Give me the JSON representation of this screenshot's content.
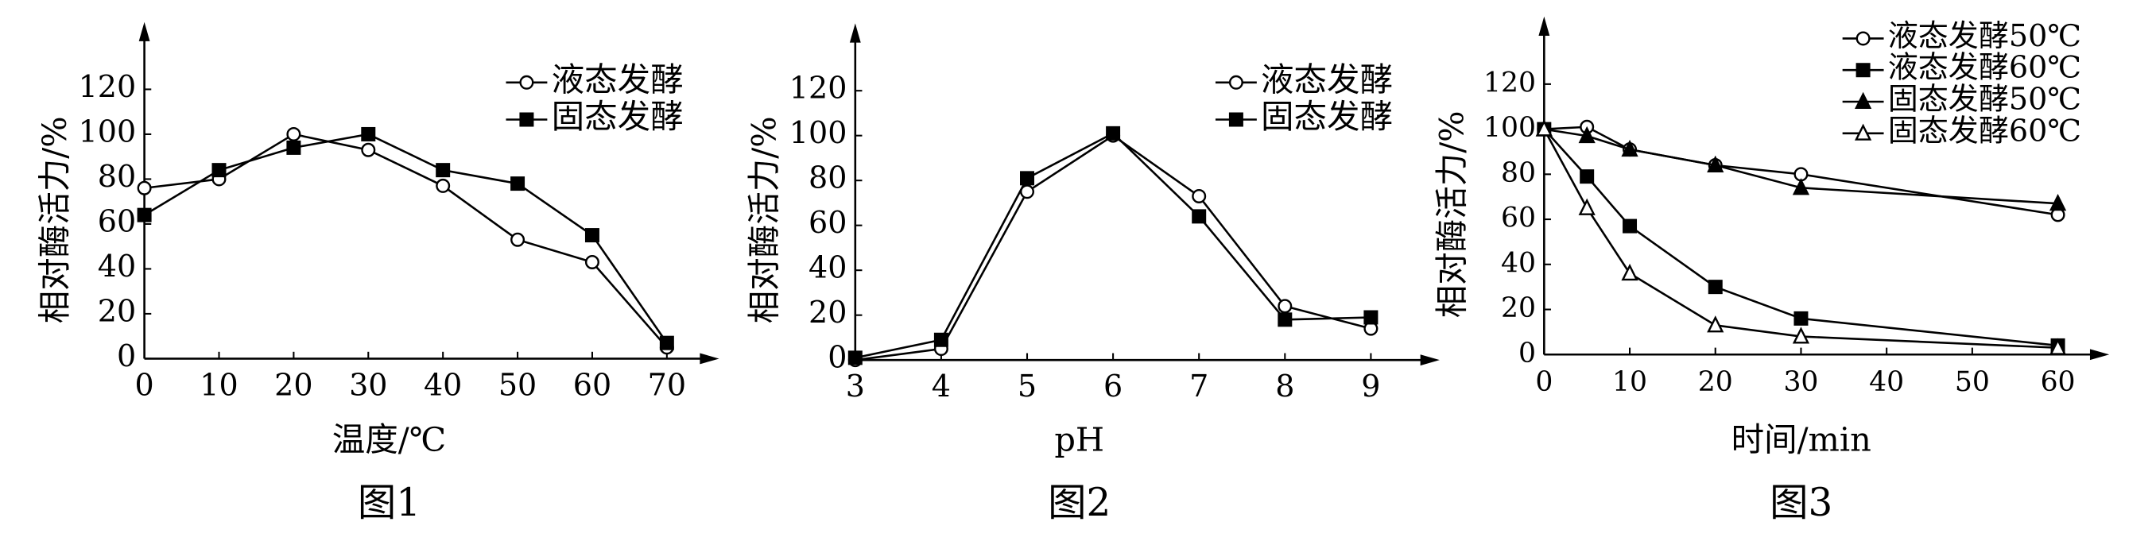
{
  "chart_data": [
    {
      "type": "line",
      "caption": "图1",
      "xlabel": "温度/℃",
      "ylabel": "相对酶活力/%",
      "x": [
        0,
        10,
        20,
        30,
        40,
        50,
        60,
        70
      ],
      "xlim": [
        0,
        77
      ],
      "xticks": [
        0,
        10,
        20,
        30,
        40,
        50,
        60,
        70
      ],
      "ylim": [
        0,
        150
      ],
      "yticks": [
        0,
        20,
        40,
        60,
        80,
        100,
        120
      ],
      "legend": "upper right",
      "series": [
        {
          "name": "液态发酵",
          "color": "#000000",
          "marker": "open-circle",
          "values": [
            76,
            80,
            100,
            93,
            77,
            53,
            43,
            5
          ]
        },
        {
          "name": "固态发酵",
          "color": "#000000",
          "marker": "filled-square",
          "values": [
            64,
            84,
            94,
            100,
            84,
            78,
            55,
            7
          ]
        }
      ]
    },
    {
      "type": "line",
      "caption": "图2",
      "xlabel": "pH",
      "ylabel": "相对酶活力/%",
      "x": [
        3,
        4,
        5,
        6,
        7,
        8,
        9
      ],
      "xlim": [
        3,
        9.8
      ],
      "xticks": [
        3,
        4,
        5,
        6,
        7,
        8,
        9
      ],
      "ylim": [
        0,
        150
      ],
      "yticks": [
        0,
        20,
        40,
        60,
        80,
        100,
        120
      ],
      "legend": "upper right",
      "series": [
        {
          "name": "液态发酵",
          "color": "#000000",
          "marker": "open-circle",
          "values": [
            0,
            5,
            75,
            100,
            73,
            24,
            14
          ]
        },
        {
          "name": "固态发酵",
          "color": "#000000",
          "marker": "filled-square",
          "values": [
            1,
            9,
            81,
            101,
            64,
            18,
            19
          ]
        }
      ]
    },
    {
      "type": "line",
      "caption": "图3",
      "xlabel": "时间/min",
      "ylabel": "相对酶活力/%",
      "x": [
        0,
        5,
        10,
        20,
        30,
        60
      ],
      "xlim": [
        0,
        66
      ],
      "xticks": [
        0,
        10,
        20,
        30,
        40,
        50,
        60
      ],
      "ylim": [
        0,
        150
      ],
      "yticks": [
        0,
        20,
        40,
        60,
        80,
        100,
        120
      ],
      "legend": "upper right",
      "series": [
        {
          "name": "液态发酵50℃",
          "color": "#000000",
          "marker": "open-circle",
          "values": [
            100,
            101,
            91,
            84,
            80,
            62
          ]
        },
        {
          "name": "液态发酵60℃",
          "color": "#000000",
          "marker": "filled-square",
          "values": [
            100,
            79,
            57,
            30,
            16,
            4
          ]
        },
        {
          "name": "固态发酵50℃",
          "color": "#000000",
          "marker": "filled-triangle",
          "values": [
            100,
            97,
            91,
            84,
            74,
            67
          ]
        },
        {
          "name": "固态发酵60℃",
          "color": "#000000",
          "marker": "open-triangle",
          "values": [
            100,
            65,
            36,
            13,
            8,
            3
          ]
        }
      ]
    }
  ]
}
